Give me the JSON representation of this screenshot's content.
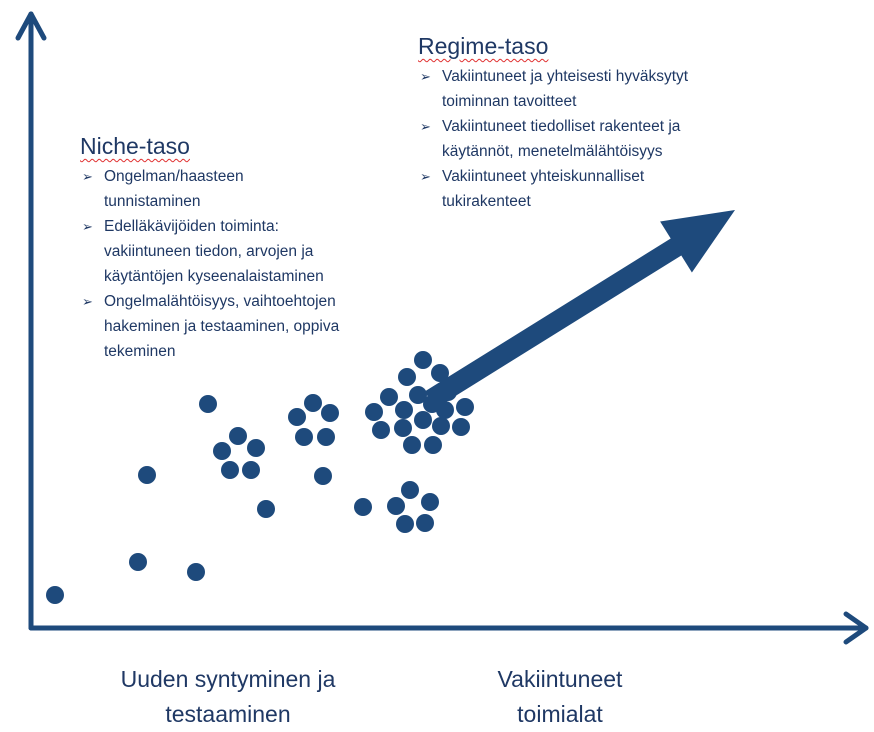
{
  "niche": {
    "title": "Niche-taso",
    "bullets": [
      [
        "Ongelman/haasteen",
        "tunnistaminen"
      ],
      [
        "Edelläkävijöiden toiminta:",
        "vakiintuneen tiedon, arvojen ja",
        "käytäntöjen kyseenalaistaminen"
      ],
      [
        "Ongelmalähtöisyys, vaihtoehtojen",
        "hakeminen ja testaaminen, oppiva",
        "tekeminen"
      ]
    ]
  },
  "regime": {
    "title": "Regime-taso",
    "bullets": [
      [
        "Vakiintuneet ja yhteisesti hyväksytyt",
        "toiminnan tavoitteet"
      ],
      [
        "Vakiintuneet tiedolliset rakenteet ja",
        "käytännöt, menetelmälähtöisyys"
      ],
      [
        "Vakiintuneet yhteiskunnalliset",
        "tukirakenteet"
      ]
    ]
  },
  "x_axis": {
    "left_label": [
      "Uuden syntyminen ja",
      "testaaminen"
    ],
    "right_label": [
      "Vakiintuneet",
      "toimialat"
    ]
  }
}
